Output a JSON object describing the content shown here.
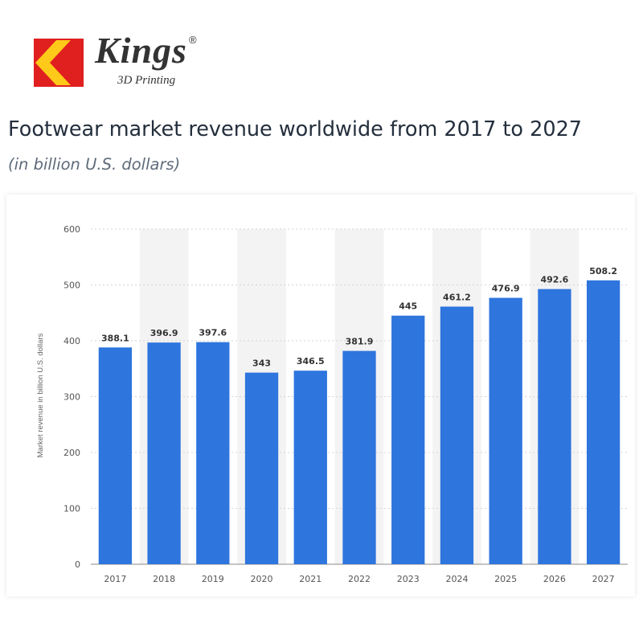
{
  "brand": {
    "name": "Kings",
    "registered_mark": "®",
    "tagline": "3D Printing",
    "colors": {
      "red": "#e01f1f",
      "yellow": "#ffc91a"
    }
  },
  "chart_data": {
    "type": "bar",
    "title": "Footwear market revenue worldwide from 2017 to 2027",
    "subtitle": "(in billion U.S. dollars)",
    "xlabel": "",
    "ylabel": "Market revenue in billion U.S. dollars",
    "categories": [
      "2017",
      "2018",
      "2019",
      "2020",
      "2021",
      "2022",
      "2023",
      "2024",
      "2025",
      "2026",
      "2027"
    ],
    "values": [
      388.1,
      396.9,
      397.6,
      343,
      346.5,
      381.9,
      445,
      461.2,
      476.9,
      492.6,
      508.2
    ],
    "ylim": [
      0,
      600
    ],
    "yticks": [
      0,
      100,
      200,
      300,
      400,
      500,
      600
    ],
    "grid": true,
    "bar_color": "#2e75de",
    "alt_band_color": "#f3f3f3"
  }
}
